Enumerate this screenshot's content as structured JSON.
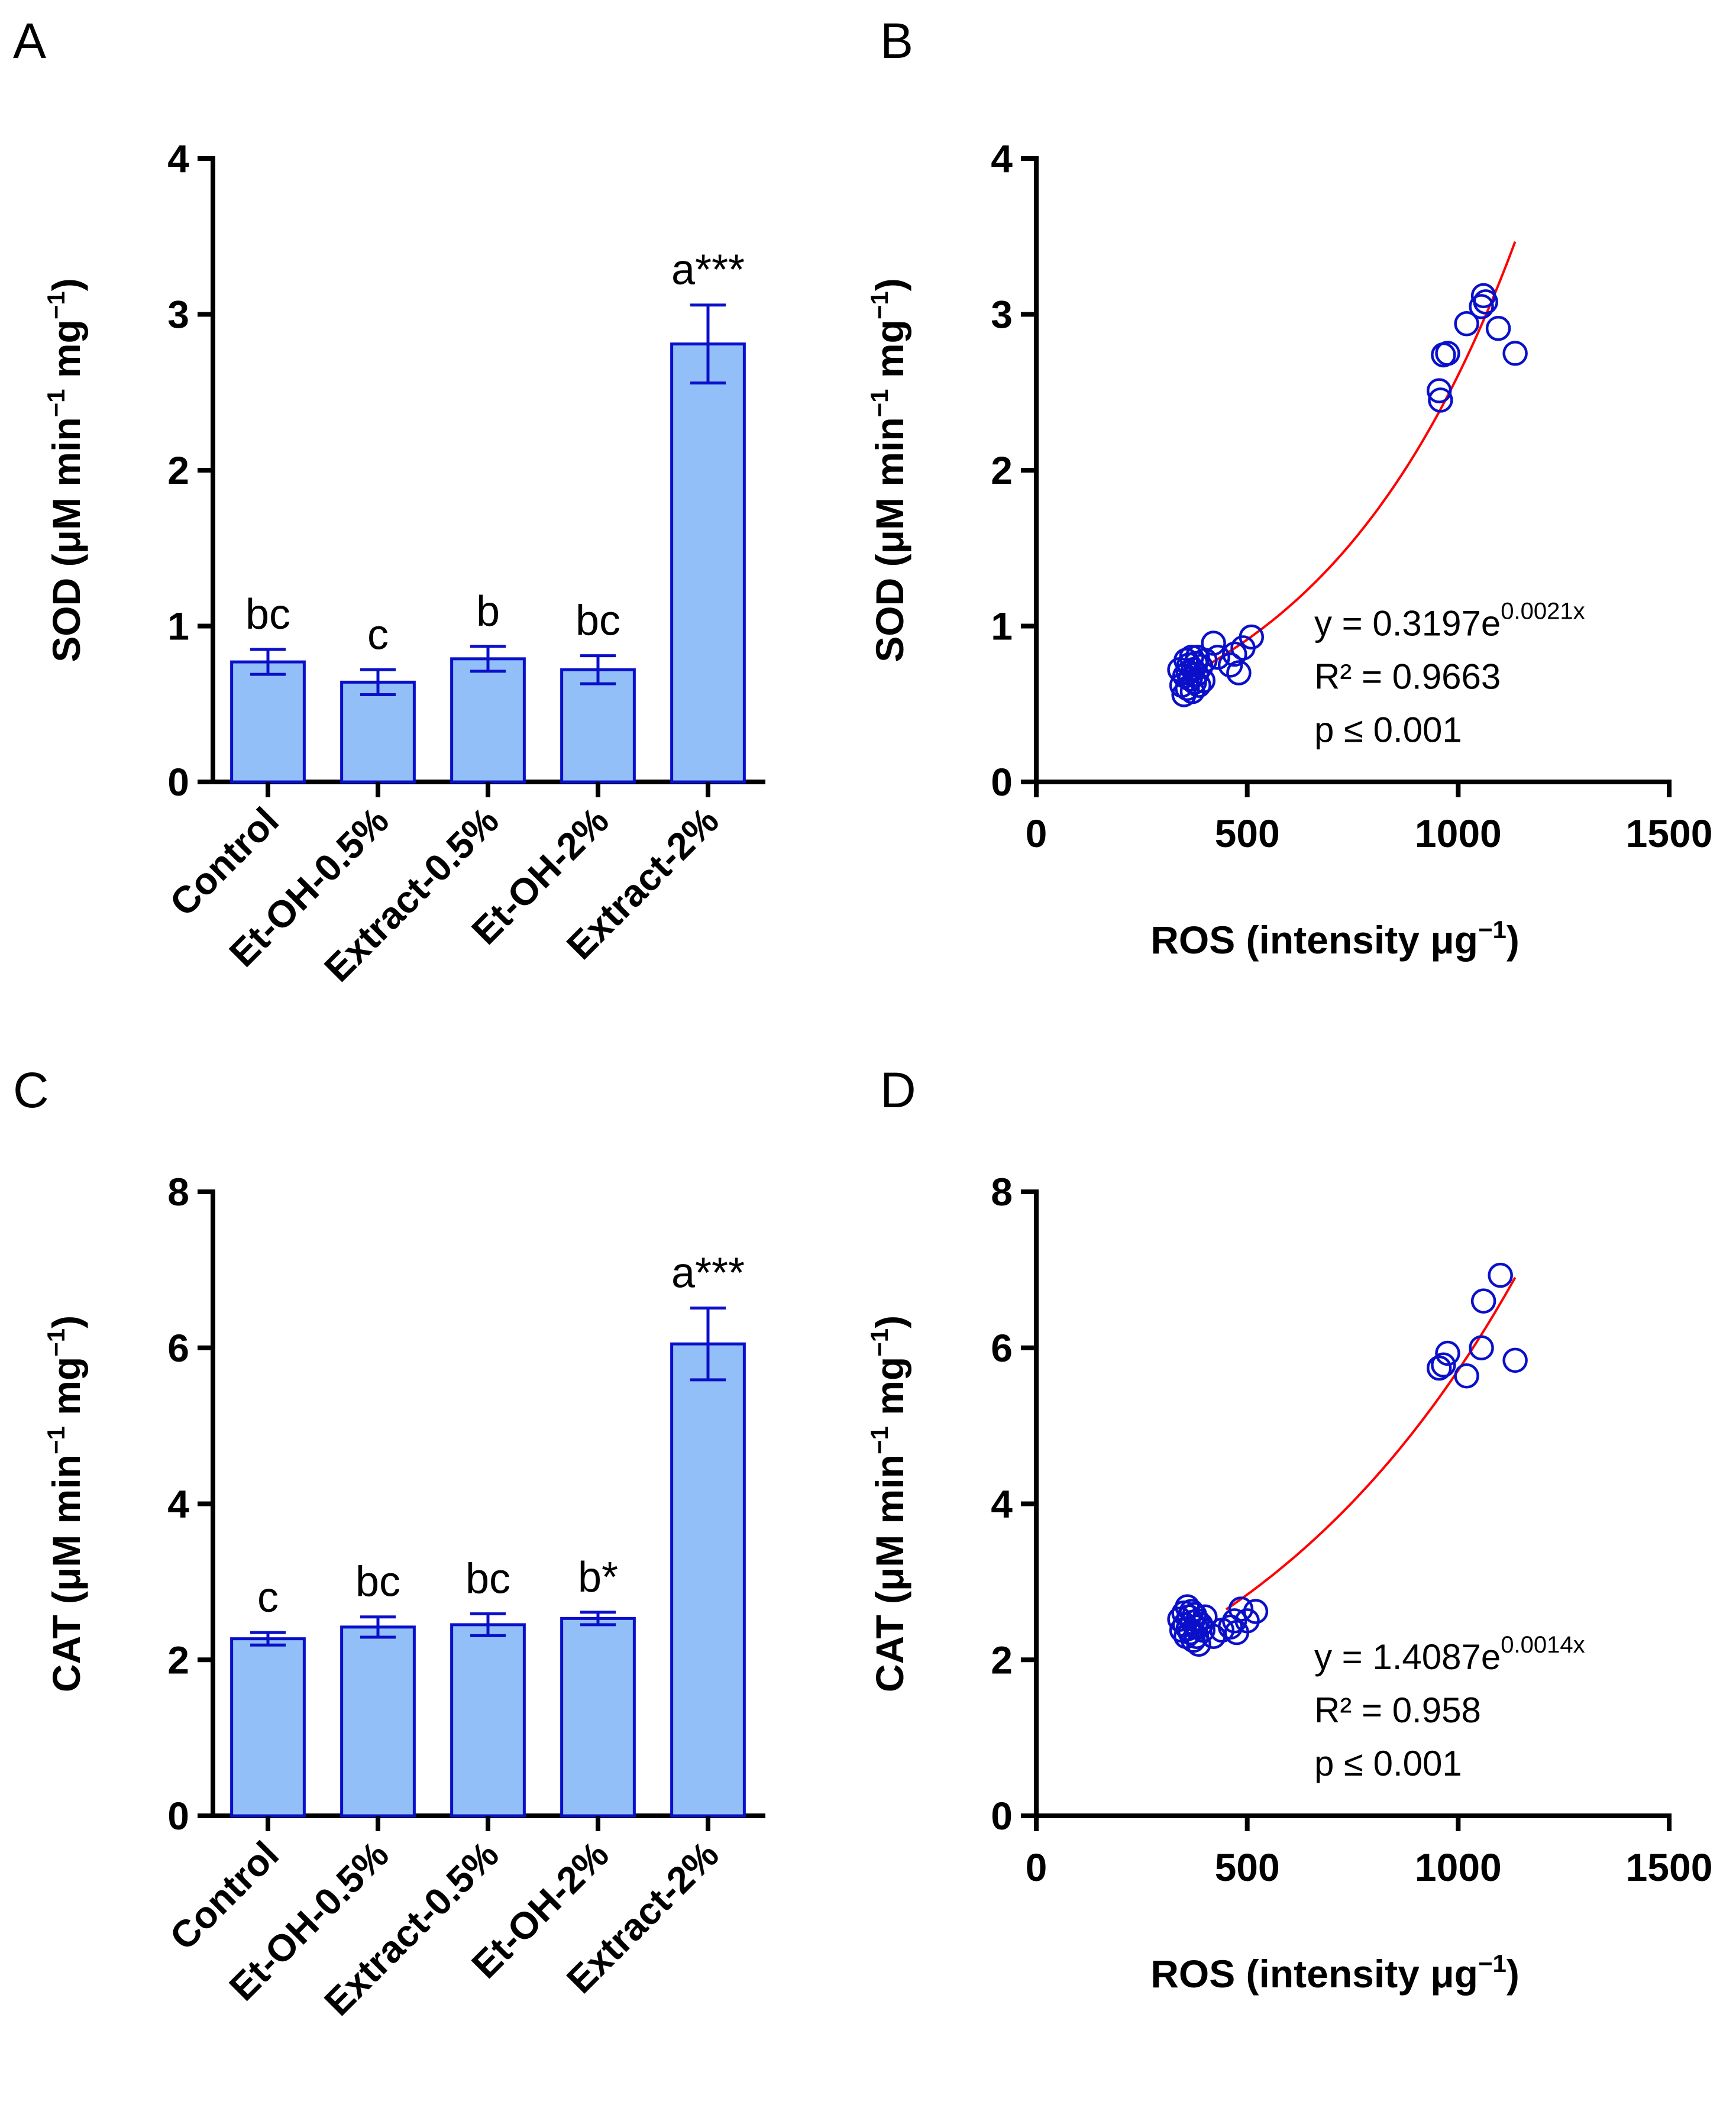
{
  "chart_data": [
    {
      "panel": "A",
      "type": "bar",
      "ylabel": "SOD (μM min",
      "ylabel_sup1": "−1",
      "ylabel_mid": " mg",
      "ylabel_sup2": "−1",
      "ylabel_end": ")",
      "ylim": [
        0,
        4
      ],
      "yticks": [
        "0",
        "1",
        "2",
        "3",
        "4"
      ],
      "categories": [
        "Control",
        "Et-OH-0.5%",
        "Extract-0.5%",
        "Et-OH-2%",
        "Extract-2%"
      ],
      "values": [
        0.77,
        0.64,
        0.79,
        0.72,
        2.81
      ],
      "errors": [
        0.08,
        0.08,
        0.08,
        0.09,
        0.25
      ],
      "labels": [
        "bc",
        "c",
        "b",
        "bc",
        "a***"
      ],
      "bar_color": "#93bff8",
      "edge_color": "#0a10c9"
    },
    {
      "panel": "B",
      "type": "scatter",
      "xlabel": "ROS (intensity μg",
      "xlabel_sup": "−1",
      "xlabel_end": ")",
      "ylabel": "SOD (μM min",
      "ylabel_sup1": "−1",
      "ylabel_mid": " mg",
      "ylabel_sup2": "−1",
      "ylabel_end": ")",
      "xlim": [
        0,
        1500
      ],
      "ylim": [
        0,
        4
      ],
      "xticks": [
        "0",
        "500",
        "1000",
        "1500"
      ],
      "yticks": [
        "0",
        "1",
        "2",
        "3",
        "4"
      ],
      "x": [
        340,
        345,
        350,
        352,
        355,
        358,
        360,
        362,
        365,
        368,
        370,
        372,
        375,
        378,
        380,
        382,
        385,
        390,
        395,
        400,
        420,
        430,
        460,
        470,
        480,
        490,
        510,
        955,
        958,
        965,
        975,
        1020,
        1055,
        1060,
        1065,
        1095,
        1135
      ],
      "y": [
        0.72,
        0.62,
        0.56,
        0.68,
        0.78,
        0.6,
        0.7,
        0.75,
        0.66,
        0.8,
        0.58,
        0.72,
        0.64,
        0.76,
        0.69,
        0.8,
        0.62,
        0.74,
        0.65,
        0.78,
        0.89,
        0.8,
        0.75,
        0.82,
        0.7,
        0.86,
        0.93,
        2.51,
        2.45,
        2.74,
        2.75,
        2.94,
        3.05,
        3.12,
        3.08,
        2.91,
        2.75
      ],
      "fit": {
        "a": 0.3197,
        "b": 0.0021,
        "x_range": [
          350,
          1135
        ]
      },
      "equation_prefix": "y = 0.3197e",
      "equation_exp": "0.0021x",
      "r2_text": "R² = 0.9663",
      "p_text": "p ≤ 0.001",
      "marker_color": "#0a10c9",
      "fit_color": "#ff0000"
    },
    {
      "panel": "C",
      "type": "bar",
      "ylabel": "CAT (μM min",
      "ylabel_sup1": "−1",
      "ylabel_mid": " mg",
      "ylabel_sup2": "−1",
      "ylabel_end": ")",
      "ylim": [
        0,
        8
      ],
      "yticks": [
        "0",
        "2",
        "4",
        "6",
        "8"
      ],
      "categories": [
        "Control",
        "Et-OH-0.5%",
        "Extract-0.5%",
        "Et-OH-2%",
        "Extract-2%"
      ],
      "values": [
        2.27,
        2.42,
        2.45,
        2.53,
        6.05
      ],
      "errors": [
        0.08,
        0.13,
        0.14,
        0.08,
        0.46
      ],
      "labels": [
        "c",
        "bc",
        "bc",
        "b*",
        "a***"
      ],
      "bar_color": "#93bff8",
      "edge_color": "#0a10c9"
    },
    {
      "panel": "D",
      "type": "scatter",
      "xlabel": "ROS (intensity μg",
      "xlabel_sup": "−1",
      "xlabel_end": ")",
      "ylabel": "CAT (μM min",
      "ylabel_sup1": "−1",
      "ylabel_mid": " mg",
      "ylabel_sup2": "−1",
      "ylabel_end": ")",
      "xlim": [
        0,
        1500
      ],
      "ylim": [
        0,
        8
      ],
      "xticks": [
        "0",
        "500",
        "1000",
        "1500"
      ],
      "yticks": [
        "0",
        "2",
        "4",
        "6",
        "8"
      ],
      "x": [
        340,
        345,
        350,
        352,
        355,
        358,
        360,
        362,
        365,
        368,
        370,
        372,
        375,
        378,
        380,
        382,
        385,
        390,
        395,
        400,
        420,
        440,
        460,
        470,
        475,
        485,
        500,
        520,
        955,
        965,
        975,
        1020,
        1055,
        1060,
        1100,
        1135
      ],
      "y": [
        2.52,
        2.38,
        2.6,
        2.45,
        2.3,
        2.68,
        2.4,
        2.55,
        2.35,
        2.62,
        2.48,
        2.25,
        2.58,
        2.42,
        2.3,
        2.5,
        2.2,
        2.45,
        2.38,
        2.55,
        2.3,
        2.38,
        2.42,
        2.5,
        2.35,
        2.65,
        2.5,
        2.62,
        5.74,
        5.78,
        5.93,
        5.64,
        6.0,
        6.6,
        6.93,
        5.84
      ],
      "fit": {
        "a": 1.4087,
        "b": 0.0014,
        "x_range": [
          450,
          1135
        ]
      },
      "equation_prefix": "y = 1.4087e",
      "equation_exp": "0.0014x",
      "r2_text": "R² = 0.958",
      "p_text": "p ≤ 0.001",
      "marker_color": "#0a10c9",
      "fit_color": "#ff0000"
    }
  ]
}
